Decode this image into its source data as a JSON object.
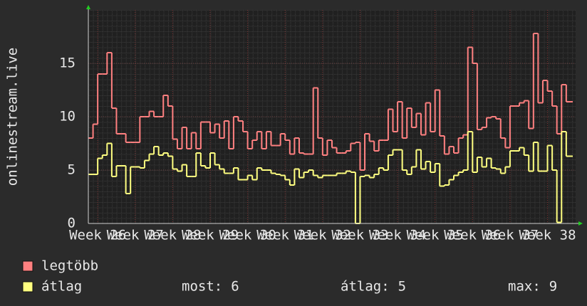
{
  "chart_data": {
    "type": "step-line",
    "y_label": "onlinestream.live",
    "x": [
      25.75,
      25.875,
      26,
      26.125,
      26.25,
      26.375,
      26.5,
      26.625,
      26.75,
      26.875,
      27,
      27.125,
      27.25,
      27.375,
      27.5,
      27.625,
      27.75,
      27.875,
      28,
      28.125,
      28.25,
      28.375,
      28.5,
      28.625,
      28.75,
      28.875,
      29,
      29.125,
      29.25,
      29.375,
      29.5,
      29.625,
      29.75,
      29.875,
      30,
      30.125,
      30.25,
      30.375,
      30.5,
      30.625,
      30.75,
      30.875,
      31,
      31.125,
      31.25,
      31.375,
      31.5,
      31.625,
      31.75,
      31.875,
      32,
      32.125,
      32.25,
      32.375,
      32.5,
      32.625,
      32.75,
      32.875,
      33,
      33.125,
      33.25,
      33.375,
      33.5,
      33.625,
      33.75,
      33.875,
      34,
      34.125,
      34.25,
      34.375,
      34.5,
      34.625,
      34.75,
      34.875,
      35,
      35.125,
      35.25,
      35.375,
      35.5,
      35.625,
      35.75,
      35.875,
      36,
      36.125,
      36.25,
      36.375,
      36.5,
      36.625,
      36.75,
      36.875,
      37,
      37.125,
      37.25,
      37.375,
      37.5,
      37.625,
      37.75,
      37.875,
      38,
      38.125,
      38.25,
      38.375,
      38.5,
      38.625
    ],
    "series": [
      {
        "name": "legtöbb",
        "color": "#ff8080",
        "values": [
          8,
          9.3,
          14,
          14,
          16,
          10.8,
          8.4,
          8.4,
          7.6,
          7.6,
          7.6,
          10,
          10,
          10.5,
          10,
          10,
          12,
          11,
          7.9,
          7,
          9,
          7,
          8.5,
          7,
          9.5,
          9.5,
          8.5,
          9.3,
          8,
          9.6,
          7,
          10,
          9.6,
          8.6,
          7,
          7.8,
          8.6,
          7,
          8.6,
          7.3,
          7.3,
          8.4,
          7.8,
          6.5,
          8,
          6.6,
          6.5,
          6.5,
          12.7,
          8,
          6.4,
          7.8,
          7.1,
          6.6,
          6.6,
          6.8,
          7.5,
          7.6,
          5,
          8.4,
          7.7,
          6.8,
          7.8,
          7.8,
          10.7,
          8.6,
          11.4,
          8,
          10.8,
          9,
          10.3,
          8.3,
          11.3,
          8.6,
          12.5,
          8.2,
          6.5,
          7.2,
          6.6,
          8,
          8.3,
          16.5,
          15,
          8.8,
          9,
          9.9,
          10,
          9.8,
          8,
          7.1,
          11,
          11,
          11.3,
          11.5,
          8.9,
          17.8,
          11.3,
          13.4,
          12.4,
          11,
          8.4,
          13,
          11.4,
          11.4
        ]
      },
      {
        "name": "átlag",
        "color": "#ffff80",
        "values": [
          4.6,
          4.6,
          6.1,
          6.4,
          7.5,
          4.4,
          5.4,
          5.4,
          2.8,
          5.3,
          5.3,
          5.2,
          5.9,
          6.5,
          7.2,
          6.4,
          6.6,
          6.3,
          5.1,
          4.9,
          5.5,
          4.4,
          4.4,
          6.6,
          5.4,
          5.2,
          6.6,
          5.5,
          5.1,
          4.7,
          4.7,
          5.2,
          4.1,
          4.1,
          4.5,
          4.1,
          5.2,
          5,
          5,
          4.7,
          4.6,
          4.5,
          4.1,
          3.6,
          5.1,
          4.3,
          4.8,
          5,
          4.5,
          4.3,
          4.5,
          4.5,
          4.5,
          4.7,
          4.7,
          4.9,
          4.8,
          0,
          4.4,
          4.5,
          4.3,
          4.6,
          5.2,
          5,
          6.4,
          6.9,
          6.9,
          5,
          4.6,
          5.3,
          6.9,
          5.1,
          5.8,
          4.8,
          5.6,
          3.5,
          3.6,
          4.1,
          4.5,
          4.8,
          5,
          8.6,
          4.8,
          6.2,
          5.3,
          6.1,
          5.2,
          5.1,
          4.7,
          5.3,
          6.8,
          6.8,
          7.1,
          6.4,
          4.9,
          7.6,
          4.9,
          4.9,
          7.3,
          5,
          0.1,
          8.6,
          6.3,
          6.3
        ]
      }
    ],
    "xlim": [
      25.75,
      38.75
    ],
    "xticks": [
      {
        "value": 26,
        "label": "Week 26"
      },
      {
        "value": 27,
        "label": "Week 27"
      },
      {
        "value": 28,
        "label": "Week 28"
      },
      {
        "value": 29,
        "label": "Week 29"
      },
      {
        "value": 30,
        "label": "Week 30"
      },
      {
        "value": 31,
        "label": "Week 31"
      },
      {
        "value": 32,
        "label": "Week 32"
      },
      {
        "value": 33,
        "label": "Week 33"
      },
      {
        "value": 34,
        "label": "Week 34"
      },
      {
        "value": 35,
        "label": "Week 35"
      },
      {
        "value": 36,
        "label": "Week 36"
      },
      {
        "value": 37,
        "label": "Week 37"
      },
      {
        "value": 38,
        "label": "Week 38"
      }
    ],
    "ylim": [
      0,
      20
    ],
    "yticks": [
      0,
      5,
      10,
      15
    ],
    "grid": true,
    "stats": [
      {
        "label": "most:",
        "value": 6
      },
      {
        "label": "átlag:",
        "value": 5
      },
      {
        "label": "max:",
        "value": 9
      }
    ]
  }
}
